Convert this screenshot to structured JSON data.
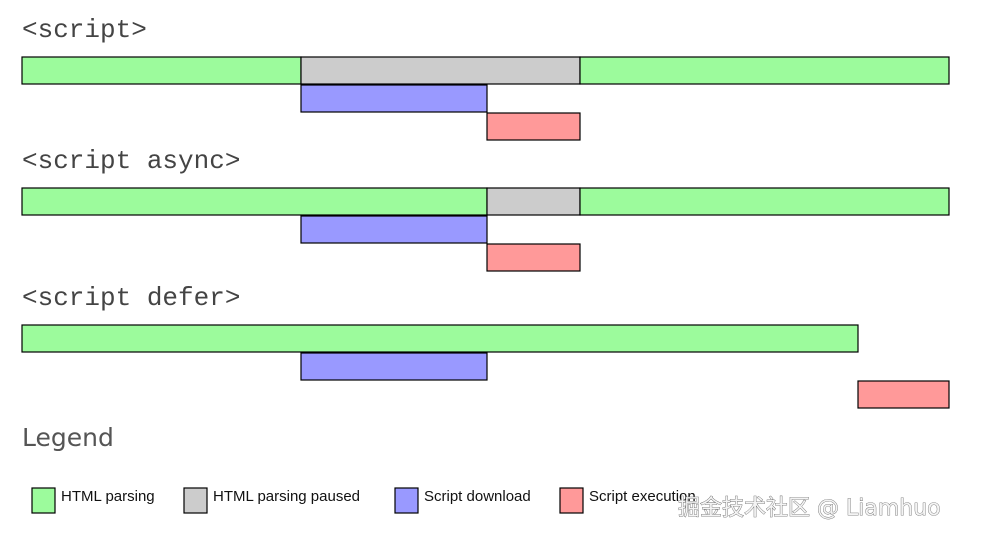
{
  "sections": [
    {
      "title": "<script>"
    },
    {
      "title": "<script async>"
    },
    {
      "title": "<script defer>"
    }
  ],
  "legend": {
    "title": "Legend",
    "items": [
      "HTML parsing",
      "HTML parsing paused",
      "Script download",
      "Script execution"
    ]
  },
  "watermark": "掘金技术社区 @ Liamhuo"
}
